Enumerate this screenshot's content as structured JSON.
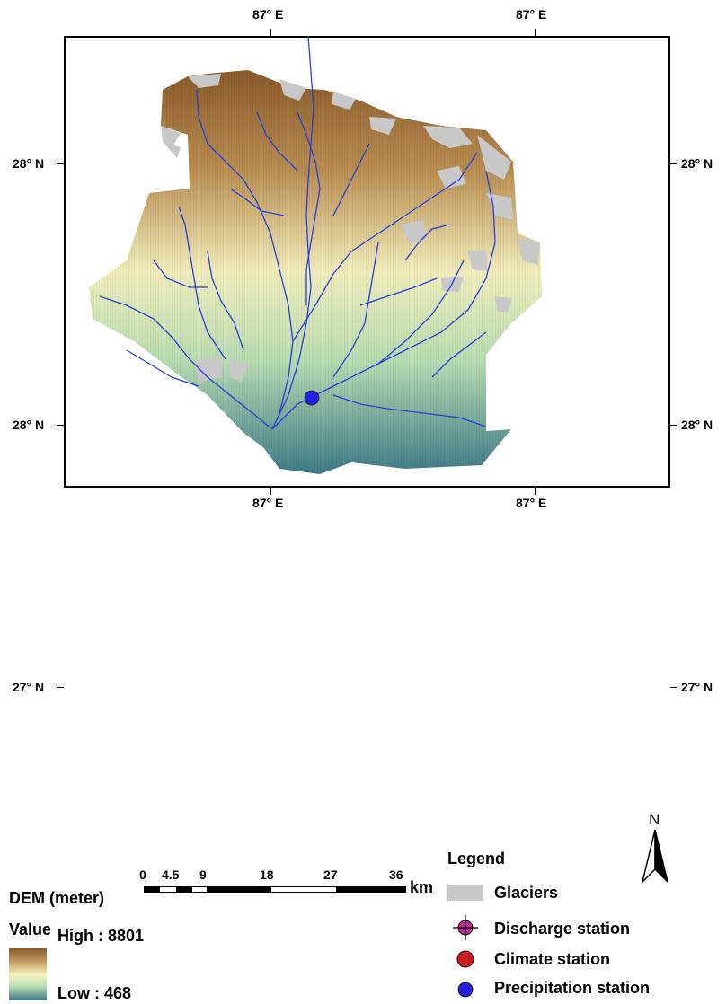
{
  "graticule": {
    "top_left_lon": "87° E",
    "top_right_lon": "87° E",
    "bottom_left_lon": "87° E",
    "bottom_right_lon": "87° E",
    "left_upper_lat": "28° N",
    "left_middle_lat": "28° N",
    "left_lower_lat": "27° N",
    "right_upper_lat": "28° N",
    "right_middle_lat": "28° N",
    "right_lower_lat": "27° N"
  },
  "scale": {
    "ticks": [
      "0",
      "4.5",
      "9",
      "18",
      "27",
      "36"
    ],
    "unit": "km"
  },
  "north_arrow": {
    "label": "N",
    "icon": "north-arrow-icon"
  },
  "dem_legend": {
    "title": "DEM (meter)",
    "value_label": "Value",
    "high_label": "High : 8801",
    "low_label": "Low : 468",
    "colors": [
      "#8a5a2b",
      "#c9a266",
      "#f5f2c0",
      "#bfe0b5",
      "#3e7a86"
    ]
  },
  "legend": {
    "title": "Legend",
    "items": [
      {
        "label": "Glaciers",
        "icon": "glacier-swatch-icon",
        "color": "#c8c8c8"
      },
      {
        "label": "Discharge station",
        "icon": "discharge-station-icon",
        "color": "#c02aa0"
      },
      {
        "label": "Climate station",
        "icon": "climate-station-icon",
        "color": "#c81e1e"
      },
      {
        "label": "Precipitation station",
        "icon": "precipitation-station-icon",
        "color": "#2222dd"
      }
    ]
  }
}
